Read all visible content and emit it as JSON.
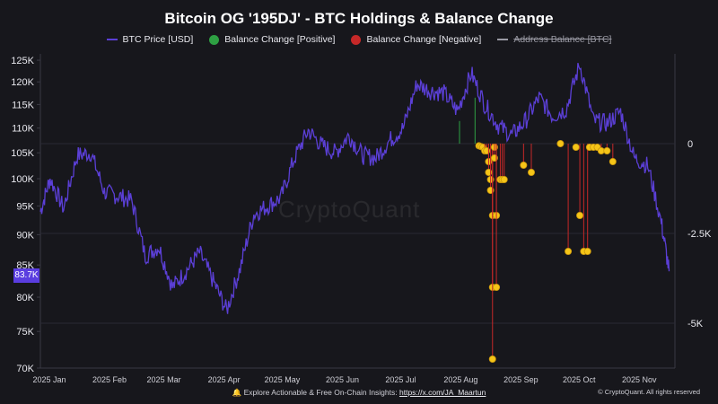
{
  "chart_data": {
    "type": "line",
    "title": "Bitcoin OG '195DJ' - BTC Holdings & Balance Change",
    "legend": [
      {
        "name": "BTC Price [USD]",
        "color": "#5b3fd6",
        "kind": "line"
      },
      {
        "name": "Balance Change [Positive]",
        "color": "#2ea043",
        "kind": "dot"
      },
      {
        "name": "Balance Change [Negative]",
        "color": "#c62828",
        "kind": "dot"
      },
      {
        "name": "Address Balance [BTC]",
        "color": "#9a9aa4",
        "kind": "line",
        "hidden": true
      }
    ],
    "x_ticks": [
      "2025 Jan",
      "2025 Feb",
      "2025 Mar",
      "2025 Apr",
      "2025 May",
      "2025 Jun",
      "2025 Jul",
      "2025 Aug",
      "2025 Sep",
      "2025 Oct",
      "2025 Nov"
    ],
    "y_left": {
      "ticks": [
        "70K",
        "75K",
        "80K",
        "85K",
        "90K",
        "95K",
        "100K",
        "105K",
        "110K",
        "115K",
        "120K",
        "125K"
      ],
      "values": [
        70000,
        75000,
        80000,
        85000,
        90000,
        95000,
        100000,
        105000,
        110000,
        115000,
        120000,
        125000
      ],
      "scale": "log"
    },
    "y_right": {
      "ticks": [
        "0",
        "-2.5K",
        "-5K"
      ],
      "values": [
        0,
        -2500,
        -5000
      ],
      "range": [
        -6250,
        2500
      ]
    },
    "current_price_label": "83.7K",
    "price_series": {
      "name": "BTC Price [USD]",
      "x": [
        "2025-01-01",
        "2025-01-06",
        "2025-01-13",
        "2025-01-20",
        "2025-01-27",
        "2025-02-03",
        "2025-02-10",
        "2025-02-17",
        "2025-02-24",
        "2025-03-03",
        "2025-03-10",
        "2025-03-17",
        "2025-03-24",
        "2025-03-31",
        "2025-04-07",
        "2025-04-14",
        "2025-04-21",
        "2025-04-28",
        "2025-05-05",
        "2025-05-12",
        "2025-05-19",
        "2025-05-26",
        "2025-06-02",
        "2025-06-09",
        "2025-06-16",
        "2025-06-23",
        "2025-06-30",
        "2025-07-07",
        "2025-07-14",
        "2025-07-21",
        "2025-07-28",
        "2025-08-04",
        "2025-08-11",
        "2025-08-18",
        "2025-08-25",
        "2025-09-01",
        "2025-09-08",
        "2025-09-15",
        "2025-09-22",
        "2025-09-29",
        "2025-10-06",
        "2025-10-13",
        "2025-10-20",
        "2025-10-27",
        "2025-11-03",
        "2025-11-10",
        "2025-11-17",
        "2025-11-21"
      ],
      "values": [
        94000,
        100000,
        94500,
        104500,
        105000,
        97500,
        96800,
        96000,
        86500,
        88000,
        81500,
        84000,
        87000,
        82500,
        78000,
        84500,
        93500,
        95000,
        96500,
        104000,
        109500,
        106500,
        105000,
        108500,
        104500,
        104000,
        107500,
        110000,
        119500,
        118000,
        117500,
        113500,
        122000,
        115000,
        110500,
        108500,
        111500,
        116500,
        112500,
        114000,
        124000,
        111500,
        111000,
        113500,
        104000,
        102500,
        92000,
        84000
      ]
    },
    "balance_changes": [
      {
        "x": "2025-08-05",
        "value": 630,
        "sign": "positive"
      },
      {
        "x": "2025-08-13",
        "value": 1280,
        "sign": "positive"
      },
      {
        "x": "2025-08-15",
        "value": -60,
        "sign": "negative"
      },
      {
        "x": "2025-08-16",
        "value": -80,
        "sign": "negative"
      },
      {
        "x": "2025-08-17",
        "value": -100,
        "sign": "negative"
      },
      {
        "x": "2025-08-18",
        "value": -200,
        "sign": "negative"
      },
      {
        "x": "2025-08-19",
        "value": -200,
        "sign": "negative"
      },
      {
        "x": "2025-08-20",
        "value": -500,
        "sign": "negative"
      },
      {
        "x": "2025-08-20",
        "value": -800,
        "sign": "negative"
      },
      {
        "x": "2025-08-21",
        "value": -1000,
        "sign": "negative"
      },
      {
        "x": "2025-08-21",
        "value": -1300,
        "sign": "negative"
      },
      {
        "x": "2025-08-22",
        "value": -2000,
        "sign": "negative"
      },
      {
        "x": "2025-08-22",
        "value": -4000,
        "sign": "negative"
      },
      {
        "x": "2025-08-22",
        "value": -6000,
        "sign": "negative"
      },
      {
        "x": "2025-08-23",
        "value": -100,
        "sign": "negative"
      },
      {
        "x": "2025-08-23",
        "value": -400,
        "sign": "negative"
      },
      {
        "x": "2025-08-24",
        "value": -2000,
        "sign": "negative"
      },
      {
        "x": "2025-08-24",
        "value": -4000,
        "sign": "negative"
      },
      {
        "x": "2025-08-26",
        "value": -1000,
        "sign": "negative"
      },
      {
        "x": "2025-08-27",
        "value": -1000,
        "sign": "negative"
      },
      {
        "x": "2025-08-28",
        "value": -1000,
        "sign": "negative"
      },
      {
        "x": "2025-09-07",
        "value": -600,
        "sign": "negative"
      },
      {
        "x": "2025-09-11",
        "value": -800,
        "sign": "negative"
      },
      {
        "x": "2025-09-26",
        "value": 0,
        "sign": "negative"
      },
      {
        "x": "2025-09-30",
        "value": -3000,
        "sign": "negative"
      },
      {
        "x": "2025-10-04",
        "value": -100,
        "sign": "negative"
      },
      {
        "x": "2025-10-06",
        "value": -2000,
        "sign": "negative"
      },
      {
        "x": "2025-10-08",
        "value": -3000,
        "sign": "negative"
      },
      {
        "x": "2025-10-10",
        "value": -3000,
        "sign": "negative"
      },
      {
        "x": "2025-10-11",
        "value": -100,
        "sign": "negative"
      },
      {
        "x": "2025-10-13",
        "value": -100,
        "sign": "negative"
      },
      {
        "x": "2025-10-15",
        "value": -100,
        "sign": "negative"
      },
      {
        "x": "2025-10-17",
        "value": -200,
        "sign": "negative"
      },
      {
        "x": "2025-10-20",
        "value": -200,
        "sign": "negative"
      },
      {
        "x": "2025-10-23",
        "value": -500,
        "sign": "negative"
      }
    ],
    "grid": true,
    "legend_position": "top-center"
  },
  "watermark": "CryptoQuant",
  "footer": {
    "icon": "bell-icon",
    "text": "Explore Actionable & Free On-Chain Insights:",
    "link": "https://x.com/JA_Maartun",
    "copyright": "© CryptoQuant. All rights reserved"
  },
  "colors": {
    "background": "#17171c",
    "price": "#5b3fd6",
    "dot": "#f5c518",
    "positive": "#2ea043",
    "negative": "#c62828"
  }
}
